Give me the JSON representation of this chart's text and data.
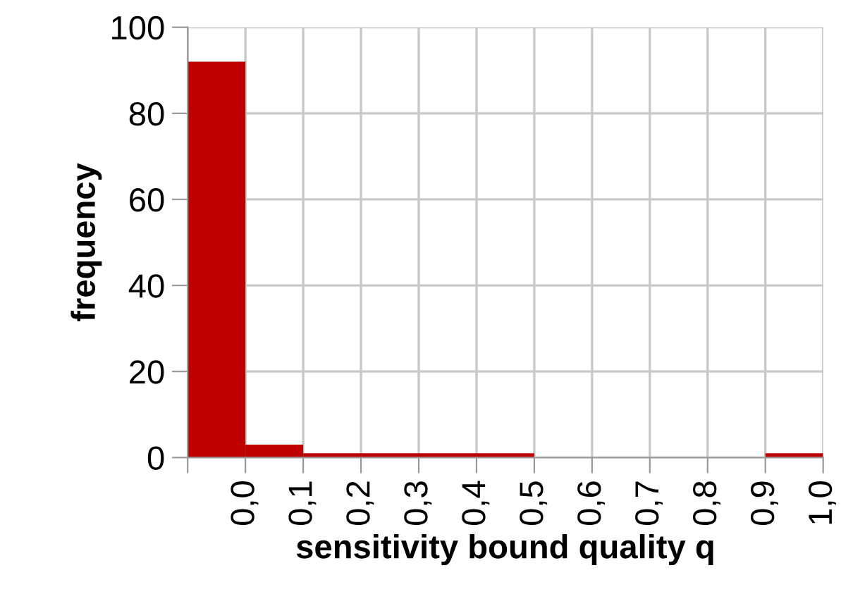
{
  "chart_data": {
    "type": "histogram",
    "xlabel": "sensitivity bound quality q",
    "ylabel": "frequency",
    "bins": [
      -0.1,
      0.0,
      0.1,
      0.2,
      0.3,
      0.4,
      0.5,
      0.6,
      0.7,
      0.8,
      0.9,
      1.0
    ],
    "values": [
      92,
      3,
      1,
      1,
      1,
      1,
      0,
      0,
      0,
      0,
      1
    ],
    "color": "#c00000",
    "xlim": [
      -0.1,
      1.0
    ],
    "xticks": [
      {
        "value": -0.1,
        "label": null
      },
      {
        "value": 0.0,
        "label": "0,0"
      },
      {
        "value": 0.1,
        "label": "0,1"
      },
      {
        "value": 0.2,
        "label": "0,2"
      },
      {
        "value": 0.3,
        "label": "0,3"
      },
      {
        "value": 0.4,
        "label": "0,4"
      },
      {
        "value": 0.5,
        "label": "0,5"
      },
      {
        "value": 0.6,
        "label": "0,6"
      },
      {
        "value": 0.7,
        "label": "0,7"
      },
      {
        "value": 0.8,
        "label": "0,8"
      },
      {
        "value": 0.9,
        "label": "0,9"
      },
      {
        "value": 1.0,
        "label": "1,0"
      }
    ],
    "ylim": [
      0,
      100
    ],
    "yticks": [
      0,
      20,
      40,
      60,
      80,
      100
    ],
    "grid": true,
    "legend": false
  }
}
